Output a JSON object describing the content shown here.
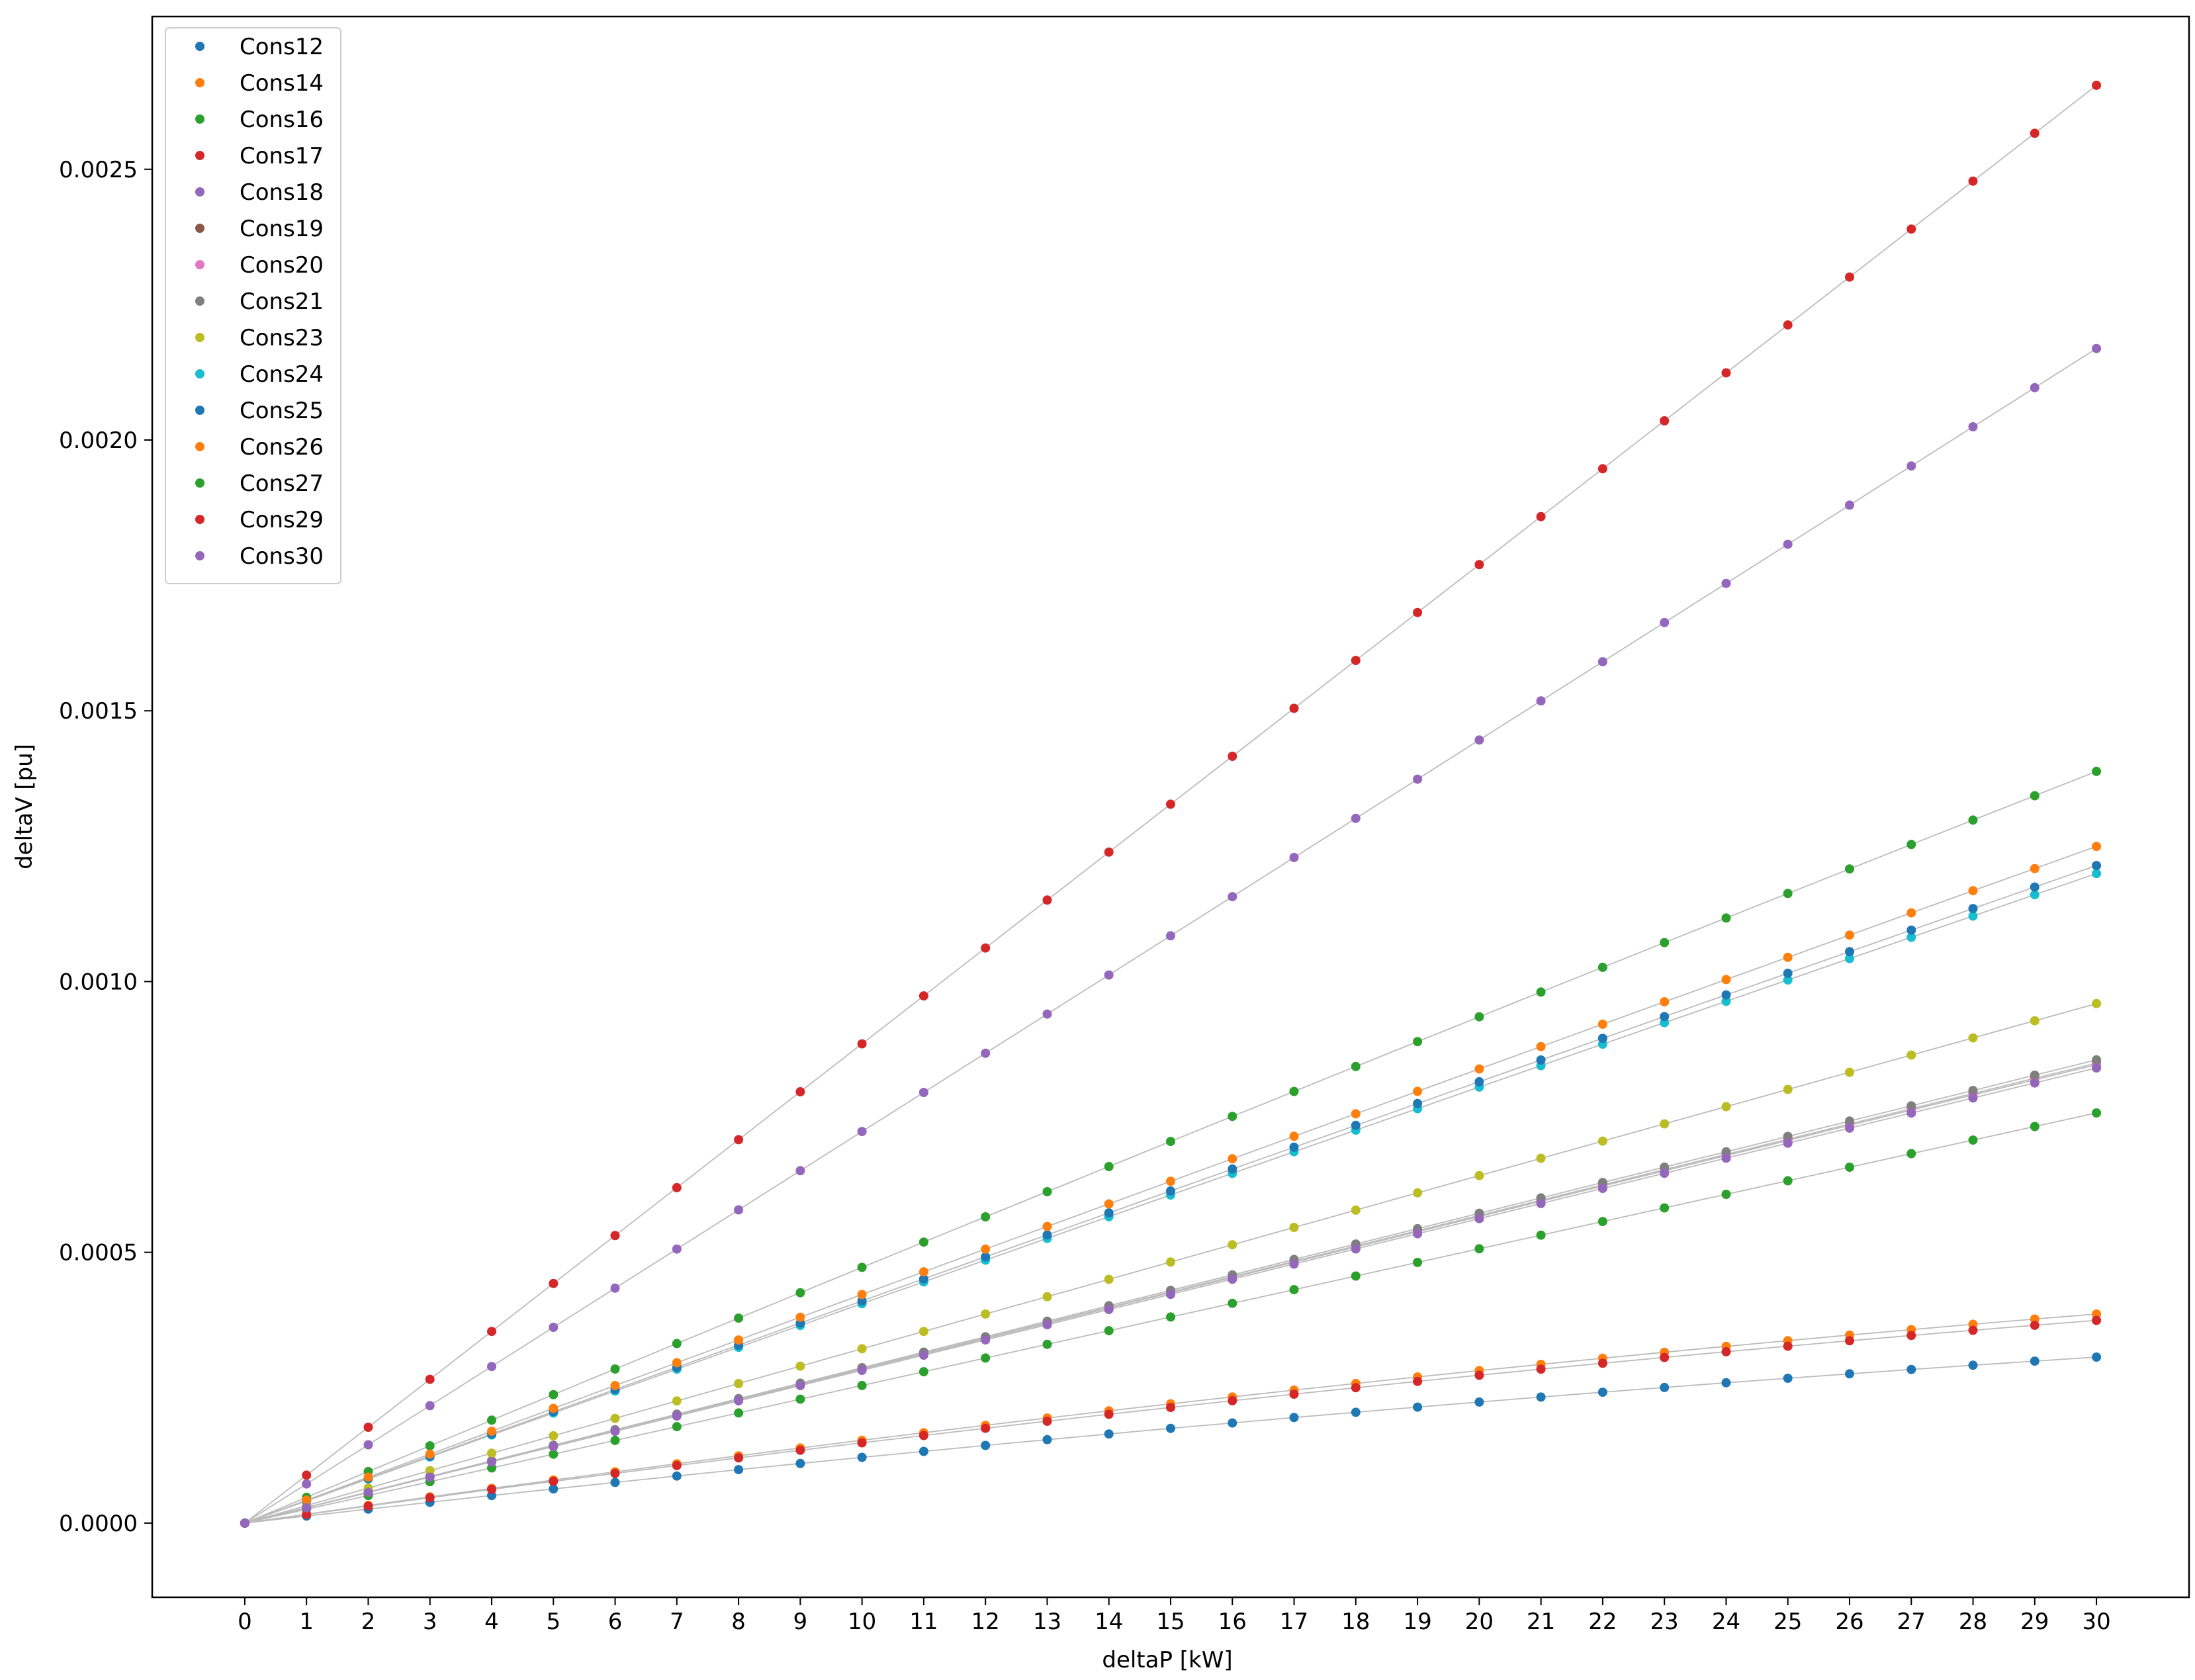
{
  "chart_data": {
    "type": "scatter",
    "xlabel": "deltaP [kW]",
    "ylabel": "deltaV [pu]",
    "xlim": [
      -1.5,
      31.5
    ],
    "ylim": [
      -0.000137,
      0.002782
    ],
    "x_ticks": [
      0,
      1,
      2,
      3,
      4,
      5,
      6,
      7,
      8,
      9,
      10,
      11,
      12,
      13,
      14,
      15,
      16,
      17,
      18,
      19,
      20,
      21,
      22,
      23,
      24,
      25,
      26,
      27,
      28,
      29,
      30
    ],
    "y_ticks": [
      {
        "value": 0.0,
        "label": "0.0000"
      },
      {
        "value": 0.0005,
        "label": "0.0005"
      },
      {
        "value": 0.001,
        "label": "0.0010"
      },
      {
        "value": 0.0015,
        "label": "0.0015"
      },
      {
        "value": 0.002,
        "label": "0.0020"
      },
      {
        "value": 0.0025,
        "label": "0.0025"
      }
    ],
    "legend_position": "top-left",
    "fit_line_color": "#bbbbbb",
    "series": [
      {
        "name": "Cons12",
        "color": "#1f77b4",
        "slope": 1.31e-05,
        "curv": 0.22
      },
      {
        "name": "Cons14",
        "color": "#ff7f0e",
        "slope": 1.65e-05,
        "curv": 0.22
      },
      {
        "name": "Cons16",
        "color": "#2ca02c",
        "slope": 4.77e-05,
        "curv": 0.03
      },
      {
        "name": "Cons17",
        "color": "#d62728",
        "slope": 8.85e-05,
        "curv": 0.0
      },
      {
        "name": "Cons18",
        "color": "#9467bd",
        "slope": 7.23e-05,
        "curv": 0.0
      },
      {
        "name": "Cons19",
        "color": "#8c564b",
        "slope": 2.86e-05,
        "curv": 0.01
      },
      {
        "name": "Cons20",
        "color": "#e377c2",
        "slope": 2.85e-05,
        "curv": 0.01
      },
      {
        "name": "Cons21",
        "color": "#7f7f7f",
        "slope": 2.88e-05,
        "curv": 0.01
      },
      {
        "name": "Cons23",
        "color": "#bcbd22",
        "slope": 3.23e-05,
        "curv": 0.01
      },
      {
        "name": "Cons24",
        "color": "#17becf",
        "slope": 4.08e-05,
        "curv": 0.02
      },
      {
        "name": "Cons25",
        "color": "#1f77b4",
        "slope": 4.13e-05,
        "curv": 0.02
      },
      {
        "name": "Cons26",
        "color": "#ff7f0e",
        "slope": 4.25e-05,
        "curv": 0.02
      },
      {
        "name": "Cons27",
        "color": "#2ca02c",
        "slope": 2.55e-05,
        "curv": 0.01
      },
      {
        "name": "Cons29",
        "color": "#d62728",
        "slope": 1.6e-05,
        "curv": 0.22
      },
      {
        "name": "Cons30",
        "color": "#9467bd",
        "slope": 2.83e-05,
        "curv": 0.01
      }
    ]
  }
}
